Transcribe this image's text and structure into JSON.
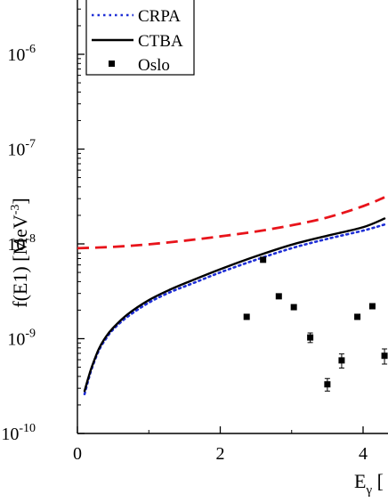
{
  "chart_data": {
    "type": "line",
    "title": "",
    "xlabel": {
      "main": "E",
      "sub": "γ",
      "rest": " ["
    },
    "ylabel": {
      "main": "f(E1) [MeV",
      "sup": "-3",
      "rest": "]"
    },
    "xlim": [
      0,
      4.3
    ],
    "ylim": [
      1e-10,
      5e-06
    ],
    "yscale": "log",
    "xticks": [
      {
        "value": 0,
        "label": "0"
      },
      {
        "value": 2,
        "label": "2"
      },
      {
        "value": 4,
        "label": "4"
      }
    ],
    "yticks": [
      {
        "value": 1e-10,
        "base": "10",
        "exp": "-10"
      },
      {
        "value": 1e-09,
        "base": "10",
        "exp": "-9"
      },
      {
        "value": 1e-08,
        "base": "10",
        "exp": "-8"
      },
      {
        "value": 1e-07,
        "base": "10",
        "exp": "-7"
      },
      {
        "value": 1e-06,
        "base": "10",
        "exp": "-6"
      }
    ],
    "series": [
      {
        "name": "",
        "style": "dashed",
        "color": "#e8141b",
        "x": [
          0.0,
          0.5,
          1.0,
          1.5,
          2.0,
          2.5,
          3.0,
          3.5,
          4.0,
          4.3
        ],
        "y": [
          9e-09,
          9.3e-09,
          9.9e-09,
          1.08e-08,
          1.2e-08,
          1.35e-08,
          1.57e-08,
          1.9e-08,
          2.5e-08,
          3.1e-08
        ]
      },
      {
        "name": "CRPA",
        "style": "dotted",
        "color": "#1f2fd6",
        "x": [
          0.1,
          0.15,
          0.2,
          0.3,
          0.4,
          0.5,
          0.7,
          1.0,
          1.3,
          1.6,
          2.0,
          2.5,
          3.0,
          3.5,
          4.0,
          4.3
        ],
        "y": [
          2.6e-10,
          3.6e-10,
          4.8e-10,
          7.5e-10,
          1e-09,
          1.25e-09,
          1.7e-09,
          2.4e-09,
          3.1e-09,
          3.8e-09,
          5e-09,
          6.8e-09,
          9e-09,
          1.13e-08,
          1.38e-08,
          1.6e-08
        ]
      },
      {
        "name": "CTBA",
        "style": "solid",
        "color": "#000000",
        "x": [
          0.1,
          0.15,
          0.2,
          0.3,
          0.4,
          0.5,
          0.7,
          1.0,
          1.3,
          1.6,
          2.0,
          2.5,
          3.0,
          3.5,
          4.0,
          4.3
        ],
        "y": [
          2.8e-10,
          3.8e-10,
          5e-10,
          7.8e-10,
          1.05e-09,
          1.3e-09,
          1.8e-09,
          2.55e-09,
          3.3e-09,
          4.1e-09,
          5.4e-09,
          7.4e-09,
          9.8e-09,
          1.22e-08,
          1.5e-08,
          1.85e-08
        ]
      },
      {
        "name": "Oslo",
        "style": "markers",
        "color": "#000000",
        "points": [
          {
            "x": 2.37,
            "y": 1.7e-09,
            "err": 1e-10
          },
          {
            "x": 2.6,
            "y": 6.8e-09,
            "err": 3e-10
          },
          {
            "x": 2.82,
            "y": 2.8e-09,
            "err": 1.5e-10
          },
          {
            "x": 3.03,
            "y": 2.15e-09,
            "err": 1.2e-10
          },
          {
            "x": 3.26,
            "y": 1.03e-09,
            "err": 1.2e-10
          },
          {
            "x": 3.5,
            "y": 3.3e-10,
            "err": 5e-11
          },
          {
            "x": 3.7,
            "y": 5.9e-10,
            "err": 1e-10
          },
          {
            "x": 3.92,
            "y": 1.7e-09,
            "err": 1e-10
          },
          {
            "x": 4.13,
            "y": 2.2e-09,
            "err": 1e-10
          },
          {
            "x": 4.3,
            "y": 6.6e-10,
            "err": 1.2e-10
          }
        ]
      }
    ],
    "legend": {
      "placement": "top-left",
      "entries": [
        {
          "label": "CRPA",
          "series": "CRPA"
        },
        {
          "label": "CTBA",
          "series": "CTBA"
        },
        {
          "label": "Oslo",
          "series": "Oslo"
        }
      ]
    }
  }
}
